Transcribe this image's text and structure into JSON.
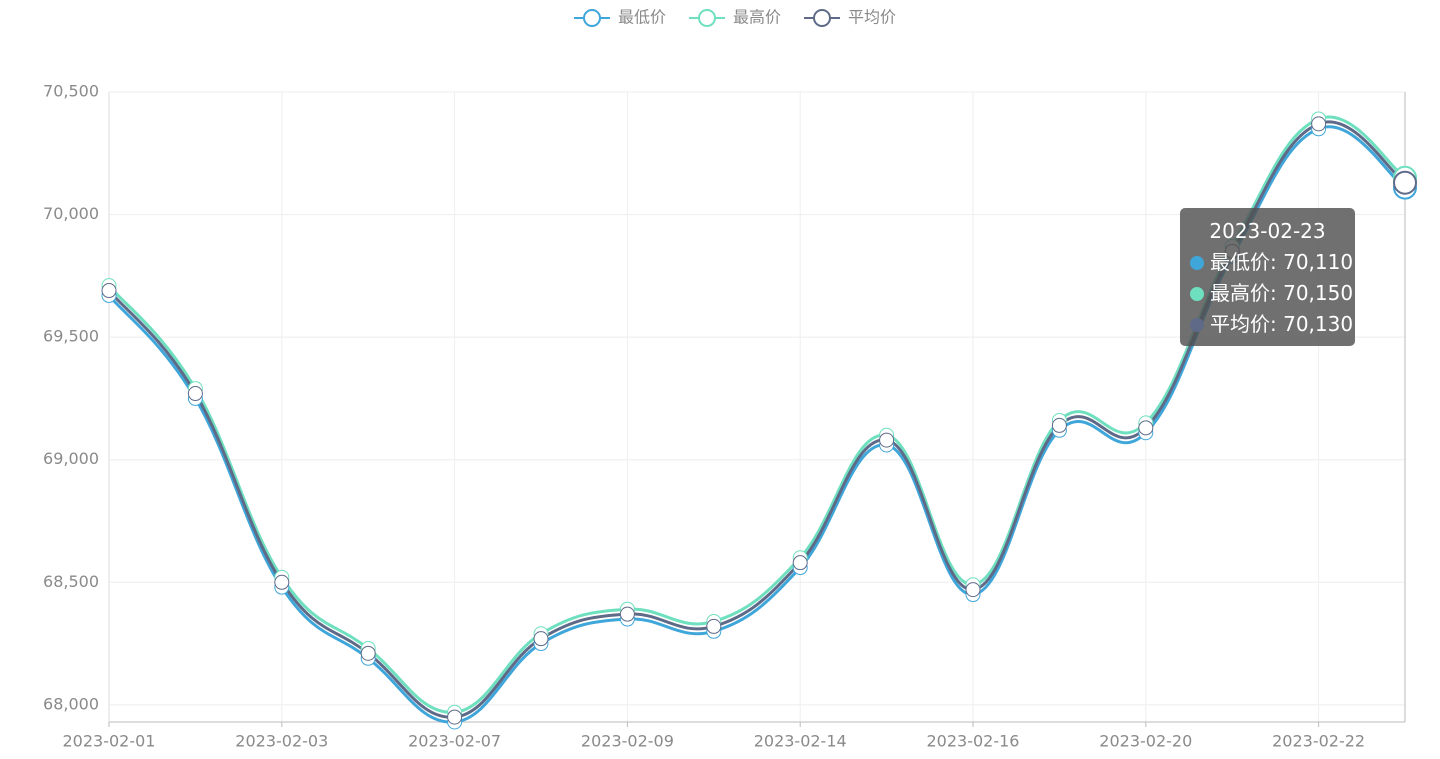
{
  "chart_data": {
    "type": "line",
    "categories": [
      "2023-02-01",
      null,
      "2023-02-03",
      null,
      "2023-02-07",
      null,
      "2023-02-09",
      null,
      "2023-02-14",
      null,
      "2023-02-16",
      null,
      "2023-02-20",
      null,
      "2023-02-22",
      null
    ],
    "series": [
      {
        "name": "最低价",
        "color": "#3fa6da",
        "values": [
          69670,
          69250,
          68480,
          68190,
          67930,
          68250,
          68350,
          68300,
          68560,
          69060,
          68450,
          69120,
          69110,
          69830,
          70350,
          70110
        ]
      },
      {
        "name": "最高价",
        "color": "#6ee0bf",
        "values": [
          69710,
          69290,
          68520,
          68230,
          67970,
          68290,
          68390,
          68340,
          68600,
          69100,
          68490,
          69160,
          69150,
          69870,
          70390,
          70150
        ]
      },
      {
        "name": "平均价",
        "color": "#5e6a88",
        "values": [
          69690,
          69270,
          68500,
          68210,
          67950,
          68270,
          68370,
          68320,
          68580,
          69080,
          68470,
          69140,
          69130,
          69850,
          70370,
          70130
        ]
      }
    ],
    "ylim": [
      67930,
      70500
    ],
    "yticks": [
      {
        "value": 68000,
        "label": "68,000"
      },
      {
        "value": 68500,
        "label": "68,500"
      },
      {
        "value": 69000,
        "label": "69,000"
      },
      {
        "value": 69500,
        "label": "69,500"
      },
      {
        "value": 70000,
        "label": "70,000"
      },
      {
        "value": 70500,
        "label": "70,500"
      }
    ],
    "grid": true,
    "tooltip": {
      "title": "2023-02-23",
      "index": 15,
      "value_labels": [
        "70,110",
        "70,150",
        "70,130"
      ]
    }
  }
}
